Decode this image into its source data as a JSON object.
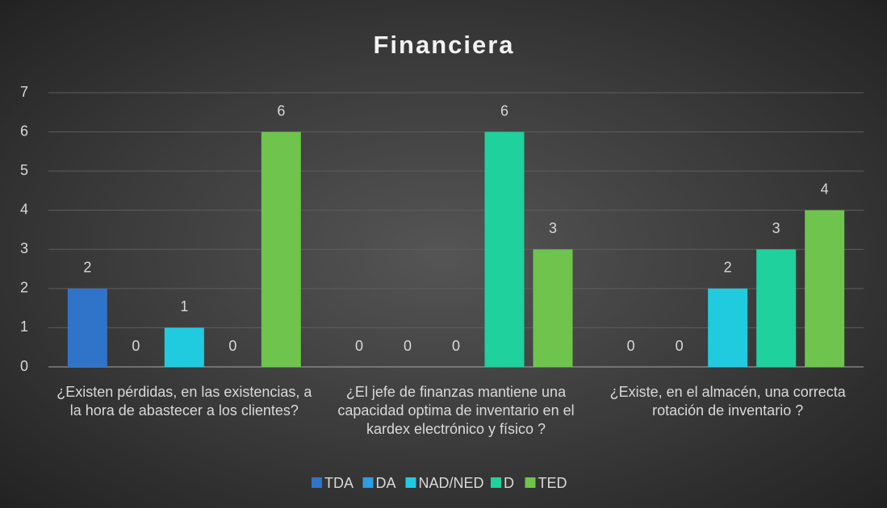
{
  "chart_data": {
    "type": "bar",
    "title": "Financiera",
    "categories": [
      "¿Existen pérdidas, en las existencias, a la hora de abastecer a los clientes?",
      "¿El jefe de finanzas mantiene una capacidad optima de inventario en el kardex electrónico y físico ?",
      "¿Existe, en el almacén, una correcta rotación de inventario ?"
    ],
    "series": [
      {
        "name": "TDA",
        "color": "#2f74c9",
        "values": [
          2,
          0,
          0
        ]
      },
      {
        "name": "DA",
        "color": "#2f9de2",
        "values": [
          0,
          0,
          0
        ]
      },
      {
        "name": "NAD/NED",
        "color": "#20cbe0",
        "values": [
          1,
          0,
          2
        ]
      },
      {
        "name": "D",
        "color": "#1fd19c",
        "values": [
          0,
          6,
          3
        ]
      },
      {
        "name": "TED",
        "color": "#6ec44c",
        "values": [
          6,
          3,
          4
        ]
      }
    ],
    "ylim": [
      0,
      7
    ],
    "yticks": [
      0,
      1,
      2,
      3,
      4,
      5,
      6,
      7
    ],
    "grid": true,
    "legend": "bottom"
  }
}
